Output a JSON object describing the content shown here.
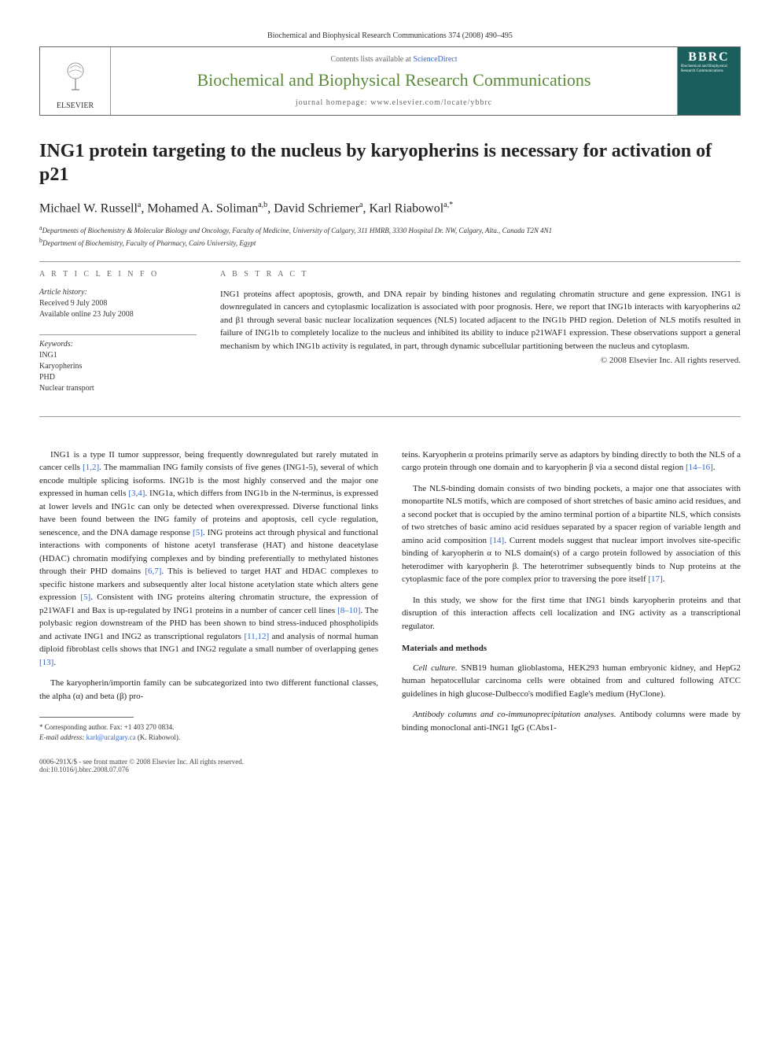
{
  "header": {
    "citation": "Biochemical and Biophysical Research Communications 374 (2008) 490–495",
    "contents_line_prefix": "Contents lists available at ",
    "contents_link": "ScienceDirect",
    "journal_name": "Biochemical and Biophysical Research Communications",
    "homepage_prefix": "journal homepage: ",
    "homepage_url": "www.elsevier.com/locate/ybbrc",
    "publisher": "ELSEVIER",
    "cover_abbr": "BBRC",
    "cover_subtitle": "Biochemical and Biophysical Research Communications"
  },
  "article": {
    "title": "ING1 protein targeting to the nucleus by karyopherins is necessary for activation of p21",
    "authors_html": "Michael W. Russell<sup>a</sup>, Mohamed A. Soliman<sup>a,b</sup>, David Schriemer<sup>a</sup>, Karl Riabowol<sup>a,*</sup>",
    "affiliations": [
      "a Departments of Biochemistry & Molecular Biology and Oncology, Faculty of Medicine, University of Calgary, 311 HMRB, 3330 Hospital Dr. NW, Calgary, Alta., Canada T2N 4N1",
      "b Department of Biochemistry, Faculty of Pharmacy, Cairo University, Egypt"
    ]
  },
  "info": {
    "heading": "A R T I C L E   I N F O",
    "history_label": "Article history:",
    "received": "Received 9 July 2008",
    "available": "Available online 23 July 2008",
    "keywords_label": "Keywords:",
    "keywords": [
      "ING1",
      "Karyopherins",
      "PHD",
      "Nuclear transport"
    ]
  },
  "abstract": {
    "heading": "A B S T R A C T",
    "text": "ING1 proteins affect apoptosis, growth, and DNA repair by binding histones and regulating chromatin structure and gene expression. ING1 is downregulated in cancers and cytoplasmic localization is associated with poor prognosis. Here, we report that ING1b interacts with karyopherins α2 and β1 through several basic nuclear localization sequences (NLS) located adjacent to the ING1b PHD region. Deletion of NLS motifs resulted in failure of ING1b to completely localize to the nucleus and inhibited its ability to induce p21WAF1 expression. These observations support a general mechanism by which ING1b activity is regulated, in part, through dynamic subcellular partitioning between the nucleus and cytoplasm.",
    "copyright": "© 2008 Elsevier Inc. All rights reserved."
  },
  "body": {
    "left": [
      "ING1 is a type II tumor suppressor, being frequently downregulated but rarely mutated in cancer cells [1,2]. The mammalian ING family consists of five genes (ING1-5), several of which encode multiple splicing isoforms. ING1b is the most highly conserved and the major one expressed in human cells [3,4]. ING1a, which differs from ING1b in the N-terminus, is expressed at lower levels and ING1c can only be detected when overexpressed. Diverse functional links have been found between the ING family of proteins and apoptosis, cell cycle regulation, senescence, and the DNA damage response [5]. ING proteins act through physical and functional interactions with components of histone acetyl transferase (HAT) and histone deacetylase (HDAC) chromatin modifying complexes and by binding preferentially to methylated histones through their PHD domains [6,7]. This is believed to target HAT and HDAC complexes to specific histone markers and subsequently alter local histone acetylation state which alters gene expression [5]. Consistent with ING proteins altering chromatin structure, the expression of p21WAF1 and Bax is up-regulated by ING1 proteins in a number of cancer cell lines [8–10]. The polybasic region downstream of the PHD has been shown to bind stress-induced phospholipids and activate ING1 and ING2 as transcriptional regulators [11,12] and analysis of normal human diploid fibroblast cells shows that ING1 and ING2 regulate a small number of overlapping genes [13].",
      "The karyopherin/importin family can be subcategorized into two different functional classes, the alpha (α) and beta (β) pro-"
    ],
    "right": [
      "teins. Karyopherin α proteins primarily serve as adaptors by binding directly to both the NLS of a cargo protein through one domain and to karyopherin β via a second distal region [14–16].",
      "The NLS-binding domain consists of two binding pockets, a major one that associates with monopartite NLS motifs, which are composed of short stretches of basic amino acid residues, and a second pocket that is occupied by the amino terminal portion of a bipartite NLS, which consists of two stretches of basic amino acid residues separated by a spacer region of variable length and amino acid composition [14]. Current models suggest that nuclear import involves site-specific binding of karyopherin α to NLS domain(s) of a cargo protein followed by association of this heterodimer with karyopherin β. The heterotrimer subsequently binds to Nup proteins at the cytoplasmic face of the pore complex prior to traversing the pore itself [17].",
      "In this study, we show for the first time that ING1 binds karyopherin proteins and that disruption of this interaction affects cell localization and ING activity as a transcriptional regulator."
    ],
    "methods_heading": "Materials and methods",
    "methods": [
      {
        "head": "Cell culture.",
        "text": " SNB19 human glioblastoma, HEK293 human embryonic kidney, and HepG2 human hepatocellular carcinoma cells were obtained from and cultured following ATCC guidelines in high glucose-Dulbecco's modified Eagle's medium (HyClone)."
      },
      {
        "head": "Antibody columns and co-immunoprecipitation analyses.",
        "text": " Antibody columns were made by binding monoclonal anti-ING1 IgG (CAbs1-"
      }
    ]
  },
  "footnote": {
    "corresponding": "* Corresponding author. Fax: +1 403 270 0834.",
    "email_label": "E-mail address:",
    "email": "karl@ucalgary.ca",
    "email_suffix": " (K. Riabowol)."
  },
  "footer": {
    "left1": "0006-291X/$ - see front matter © 2008 Elsevier Inc. All rights reserved.",
    "left2": "doi:10.1016/j.bbrc.2008.07.076"
  },
  "colors": {
    "journal_green": "#5a8a3a",
    "link_blue": "#3366cc",
    "cover_bg": "#1a5e5e",
    "text": "#222222",
    "muted": "#666666"
  },
  "typography": {
    "title_fontsize": 24,
    "authors_fontsize": 16,
    "body_fontsize": 11,
    "info_fontsize": 10,
    "footnote_fontsize": 9
  }
}
